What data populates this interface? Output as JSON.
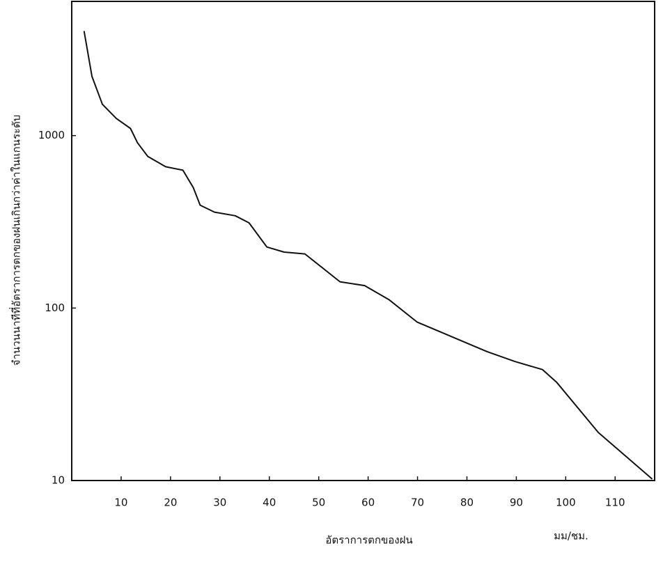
{
  "chart_data": {
    "type": "line",
    "x_label": "อัตราการตกของฝน",
    "x_unit": "มม/ชม.",
    "y_label": "จำนวนนาทีที่อัตราการตกของฝนเกินกว่าค่าในแกนระดับ",
    "x": [
      2.5,
      4.1,
      6.2,
      9,
      11.9,
      13.3,
      15.4,
      19,
      22.5,
      24.6,
      26,
      28.9,
      33.1,
      35.9,
      39.5,
      43,
      47.2,
      54.3,
      59.3,
      64.2,
      69.9,
      75.5,
      84,
      89.7,
      95.3,
      98.2,
      106.6,
      117.5
    ],
    "values": [
      4040,
      2200,
      1520,
      1260,
      1100,
      910,
      757,
      660,
      630,
      500,
      395,
      360,
      343,
      312,
      226,
      211,
      206,
      142,
      135,
      112,
      83,
      71,
      56,
      49,
      44,
      37,
      19,
      10.2
    ],
    "color": "#111111",
    "xlim": [
      0,
      118
    ],
    "xticks": [
      10,
      20,
      30,
      40,
      50,
      60,
      70,
      80,
      90,
      100,
      110
    ],
    "ylim": [
      10,
      6000
    ],
    "yticks": [
      10,
      100,
      1000
    ],
    "log_y": true,
    "grid": false
  }
}
